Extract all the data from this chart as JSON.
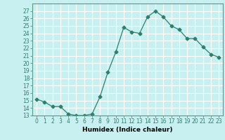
{
  "x": [
    0,
    1,
    2,
    3,
    4,
    5,
    6,
    7,
    8,
    9,
    10,
    11,
    12,
    13,
    14,
    15,
    16,
    17,
    18,
    19,
    20,
    21,
    22,
    23
  ],
  "y": [
    15.2,
    14.8,
    14.2,
    14.2,
    13.2,
    13.0,
    13.0,
    13.2,
    15.5,
    18.8,
    21.5,
    24.8,
    24.2,
    24.0,
    26.2,
    27.0,
    26.2,
    25.0,
    24.5,
    23.3,
    23.3,
    22.2,
    21.2,
    20.8
  ],
  "line_color": "#2e7f6e",
  "marker": "D",
  "marker_size": 2.5,
  "bg_color": "#c8f0f0",
  "grid_color": "#aadddd",
  "xlabel": "Humidex (Indice chaleur)",
  "ylim": [
    13,
    28
  ],
  "xlim": [
    -0.5,
    23.5
  ],
  "yticks": [
    13,
    14,
    15,
    16,
    17,
    18,
    19,
    20,
    21,
    22,
    23,
    24,
    25,
    26,
    27
  ],
  "xticks": [
    0,
    1,
    2,
    3,
    4,
    5,
    6,
    7,
    8,
    9,
    10,
    11,
    12,
    13,
    14,
    15,
    16,
    17,
    18,
    19,
    20,
    21,
    22,
    23
  ],
  "xtick_labels": [
    "0",
    "1",
    "2",
    "3",
    "4",
    "5",
    "6",
    "7",
    "8",
    "9",
    "10",
    "11",
    "12",
    "13",
    "14",
    "15",
    "16",
    "17",
    "18",
    "19",
    "20",
    "21",
    "22",
    "23"
  ],
  "label_fontsize": 6.5,
  "tick_fontsize": 5.5
}
